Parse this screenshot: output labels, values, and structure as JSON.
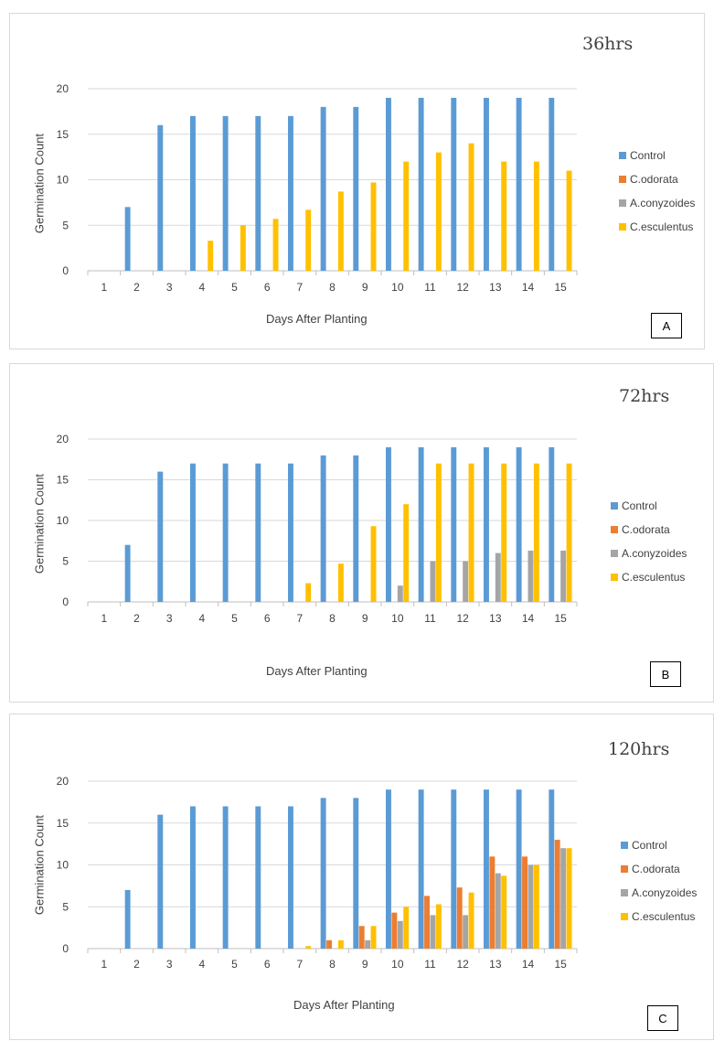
{
  "chart_data": [
    {
      "type": "bar",
      "title": "36hrs",
      "panel_label": "A",
      "xlabel": "Days After Planting",
      "ylabel": "Germination Count",
      "ylim": [
        0,
        20
      ],
      "yticks": [
        0,
        5,
        10,
        15,
        20
      ],
      "grid": true,
      "legend_position": "right",
      "categories": [
        "1",
        "2",
        "3",
        "4",
        "5",
        "6",
        "7",
        "8",
        "9",
        "10",
        "11",
        "12",
        "13",
        "14",
        "15"
      ],
      "series": [
        {
          "name": "Control",
          "color": "#5b9bd5",
          "values": [
            0,
            7,
            16,
            17,
            17,
            17,
            17,
            18,
            18,
            19,
            19,
            19,
            19,
            19,
            19
          ]
        },
        {
          "name": "C.odorata",
          "color": "#ed7d31",
          "values": [
            0,
            0,
            0,
            0,
            0,
            0,
            0,
            0,
            0,
            0,
            0,
            0,
            0,
            0,
            0
          ]
        },
        {
          "name": "A.conyzoides",
          "color": "#a5a5a5",
          "values": [
            0,
            0,
            0,
            0,
            0,
            0,
            0,
            0,
            0,
            0,
            0,
            0,
            0,
            0,
            0
          ]
        },
        {
          "name": "C.esculentus",
          "color": "#ffc000",
          "values": [
            0,
            0,
            0,
            3.3,
            5,
            5.7,
            6.7,
            8.7,
            9.7,
            12,
            13,
            14,
            12,
            12,
            11
          ]
        }
      ]
    },
    {
      "type": "bar",
      "title": "72hrs",
      "panel_label": "B",
      "xlabel": "Days After Planting",
      "ylabel": "Germination Count",
      "ylim": [
        0,
        20
      ],
      "yticks": [
        0,
        5,
        10,
        15,
        20
      ],
      "grid": true,
      "legend_position": "right",
      "categories": [
        "1",
        "2",
        "3",
        "4",
        "5",
        "6",
        "7",
        "8",
        "9",
        "10",
        "11",
        "12",
        "13",
        "14",
        "15"
      ],
      "series": [
        {
          "name": "Control",
          "color": "#5b9bd5",
          "values": [
            0,
            7,
            16,
            17,
            17,
            17,
            17,
            18,
            18,
            19,
            19,
            19,
            19,
            19,
            19
          ]
        },
        {
          "name": "C.odorata",
          "color": "#ed7d31",
          "values": [
            0,
            0,
            0,
            0,
            0,
            0,
            0,
            0,
            0,
            0,
            0,
            0,
            0,
            0,
            0
          ]
        },
        {
          "name": "A.conyzoides",
          "color": "#a5a5a5",
          "values": [
            0,
            0,
            0,
            0,
            0,
            0,
            0,
            0,
            0,
            2,
            5,
            5,
            6,
            6.3,
            6.3
          ]
        },
        {
          "name": "C.esculentus",
          "color": "#ffc000",
          "values": [
            0,
            0,
            0,
            0,
            0,
            0,
            2.3,
            4.7,
            9.3,
            12,
            17,
            17,
            17,
            17,
            17
          ]
        }
      ]
    },
    {
      "type": "bar",
      "title": "120hrs",
      "panel_label": "C",
      "xlabel": "Days After Planting",
      "ylabel": "Germination Count",
      "ylim": [
        0,
        20
      ],
      "yticks": [
        0,
        5,
        10,
        15,
        20
      ],
      "grid": true,
      "legend_position": "right",
      "categories": [
        "1",
        "2",
        "3",
        "4",
        "5",
        "6",
        "7",
        "8",
        "9",
        "10",
        "11",
        "12",
        "13",
        "14",
        "15"
      ],
      "series": [
        {
          "name": "Control",
          "color": "#5b9bd5",
          "values": [
            0,
            7,
            16,
            17,
            17,
            17,
            17,
            18,
            18,
            19,
            19,
            19,
            19,
            19,
            19
          ]
        },
        {
          "name": "C.odorata",
          "color": "#ed7d31",
          "values": [
            0,
            0,
            0,
            0,
            0,
            0,
            0,
            1,
            2.7,
            4.3,
            6.3,
            7.3,
            11,
            11,
            13
          ]
        },
        {
          "name": "A.conyzoides",
          "color": "#a5a5a5",
          "values": [
            0,
            0,
            0,
            0,
            0,
            0,
            0,
            0,
            1,
            3.3,
            4,
            4,
            9,
            10,
            12
          ]
        },
        {
          "name": "C.esculentus",
          "color": "#ffc000",
          "values": [
            0,
            0,
            0,
            0,
            0,
            0,
            0.3,
            1,
            2.7,
            5,
            5.3,
            6.7,
            8.7,
            10,
            12
          ]
        }
      ]
    }
  ]
}
